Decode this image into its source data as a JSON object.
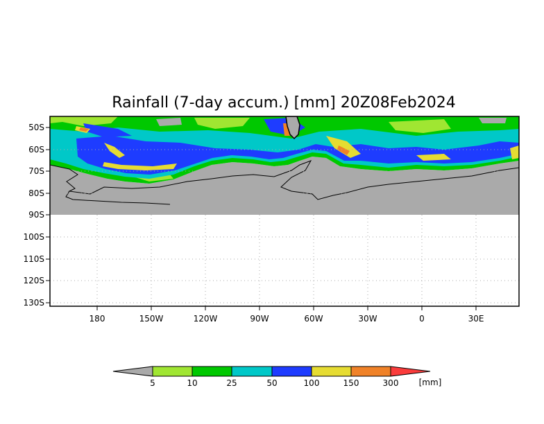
{
  "title": "Rainfall (7-day accum.) [mm] 20Z08Feb2024",
  "map": {
    "lat_labels": [
      "50S",
      "60S",
      "70S",
      "80S",
      "90S",
      "100S",
      "110S",
      "120S",
      "130S"
    ],
    "lon_labels": [
      "180",
      "150W",
      "120W",
      "90W",
      "60W",
      "30W",
      "0",
      "30E"
    ],
    "no_data_color": "#aaaaaa",
    "land_color": "#aaaaaa",
    "grid": "dotted"
  },
  "colorbar": {
    "labels": [
      "5",
      "10",
      "25",
      "50",
      "100",
      "150",
      "300"
    ],
    "unit": "[mm]",
    "colors": [
      "#aaaaaa",
      "#a0e632",
      "#00c800",
      "#00c8c8",
      "#1e3cff",
      "#e6dc32",
      "#f08228",
      "#fa3c3c"
    ]
  }
}
